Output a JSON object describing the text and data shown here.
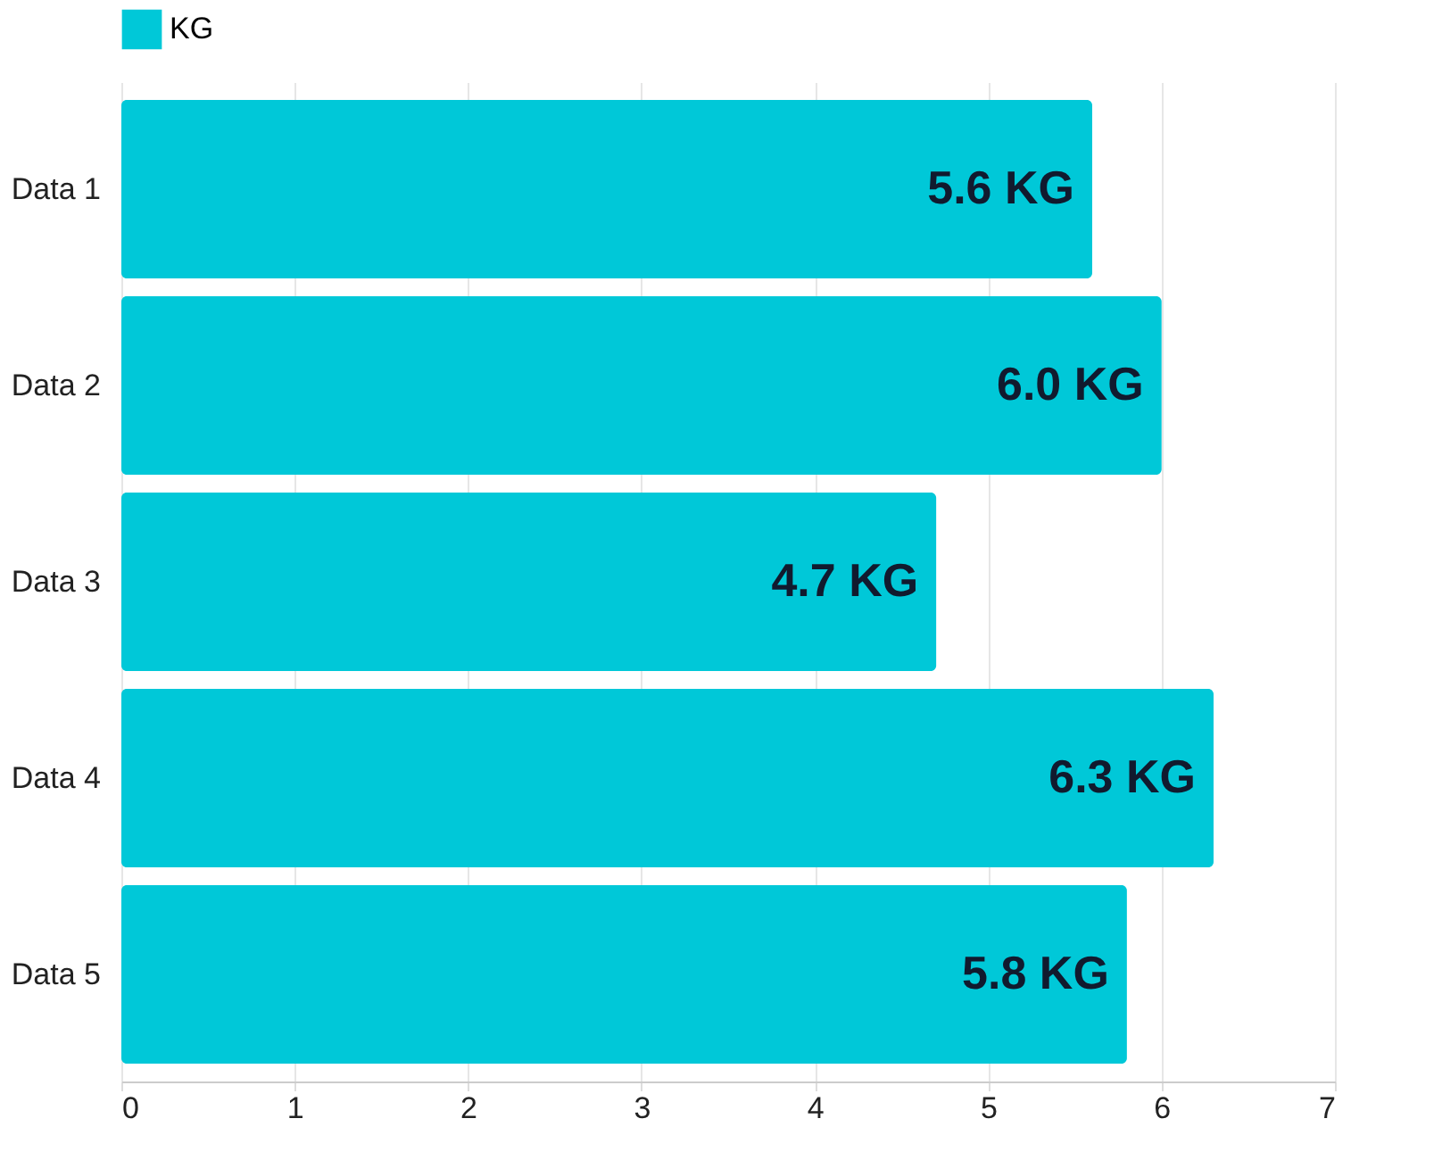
{
  "chart_data": {
    "type": "bar",
    "orientation": "horizontal",
    "categories": [
      "Data 1",
      "Data 2",
      "Data 3",
      "Data 4",
      "Data 5"
    ],
    "series": [
      {
        "name": "KG",
        "color": "#00c8d8",
        "values": [
          5.6,
          6.0,
          4.7,
          6.3,
          5.8
        ],
        "value_labels": [
          "5.6 KG",
          "6.0 KG",
          "4.7 KG",
          "6.3 KG",
          "5.8 KG"
        ]
      }
    ],
    "xlim": [
      0,
      7
    ],
    "xticks": [
      0,
      1,
      2,
      3,
      4,
      5,
      6,
      7
    ],
    "grid": "x",
    "legend": "top"
  }
}
